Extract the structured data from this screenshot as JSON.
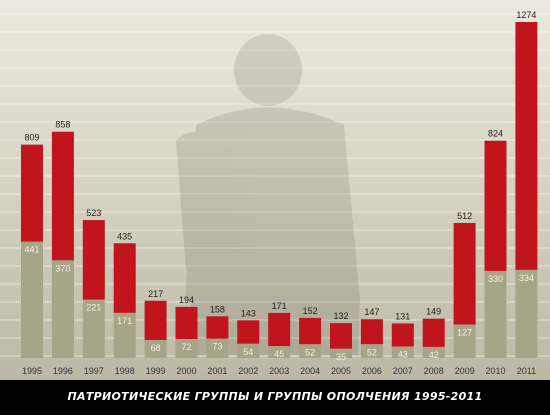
{
  "caption": "ПАТРИОТИЧЕСКИЕ ГРУППЫ И ГРУППЫ ОПОЛЧЕНИЯ 1995-2011",
  "colors": {
    "total_bar": "#c1141c",
    "lower_bar": "#a8a487",
    "background_top": "#ebe9df",
    "background_bottom": "#bcb8a4",
    "caption_band": "#000000"
  },
  "chart_data": {
    "type": "bar",
    "title": "ПАТРИОТИЧЕСКИЕ ГРУППЫ И ГРУППЫ ОПОЛЧЕНИЯ 1995-2011",
    "xlabel": "",
    "ylabel": "",
    "categories": [
      "1995",
      "1996",
      "1997",
      "1998",
      "1999",
      "2000",
      "2001",
      "2002",
      "2003",
      "2004",
      "2005",
      "2006",
      "2007",
      "2008",
      "2009",
      "2010",
      "2011"
    ],
    "series": [
      {
        "values": [
          809,
          858,
          523,
          435,
          217,
          194,
          158,
          143,
          171,
          152,
          132,
          147,
          131,
          149,
          512,
          824,
          1274
        ]
      },
      {
        "values": [
          441,
          370,
          221,
          171,
          68,
          72,
          73,
          54,
          45,
          52,
          35,
          52,
          43,
          42,
          127,
          330,
          334
        ]
      }
    ],
    "ylim": [
      0,
      1274
    ],
    "grid": true,
    "legend": "none"
  }
}
